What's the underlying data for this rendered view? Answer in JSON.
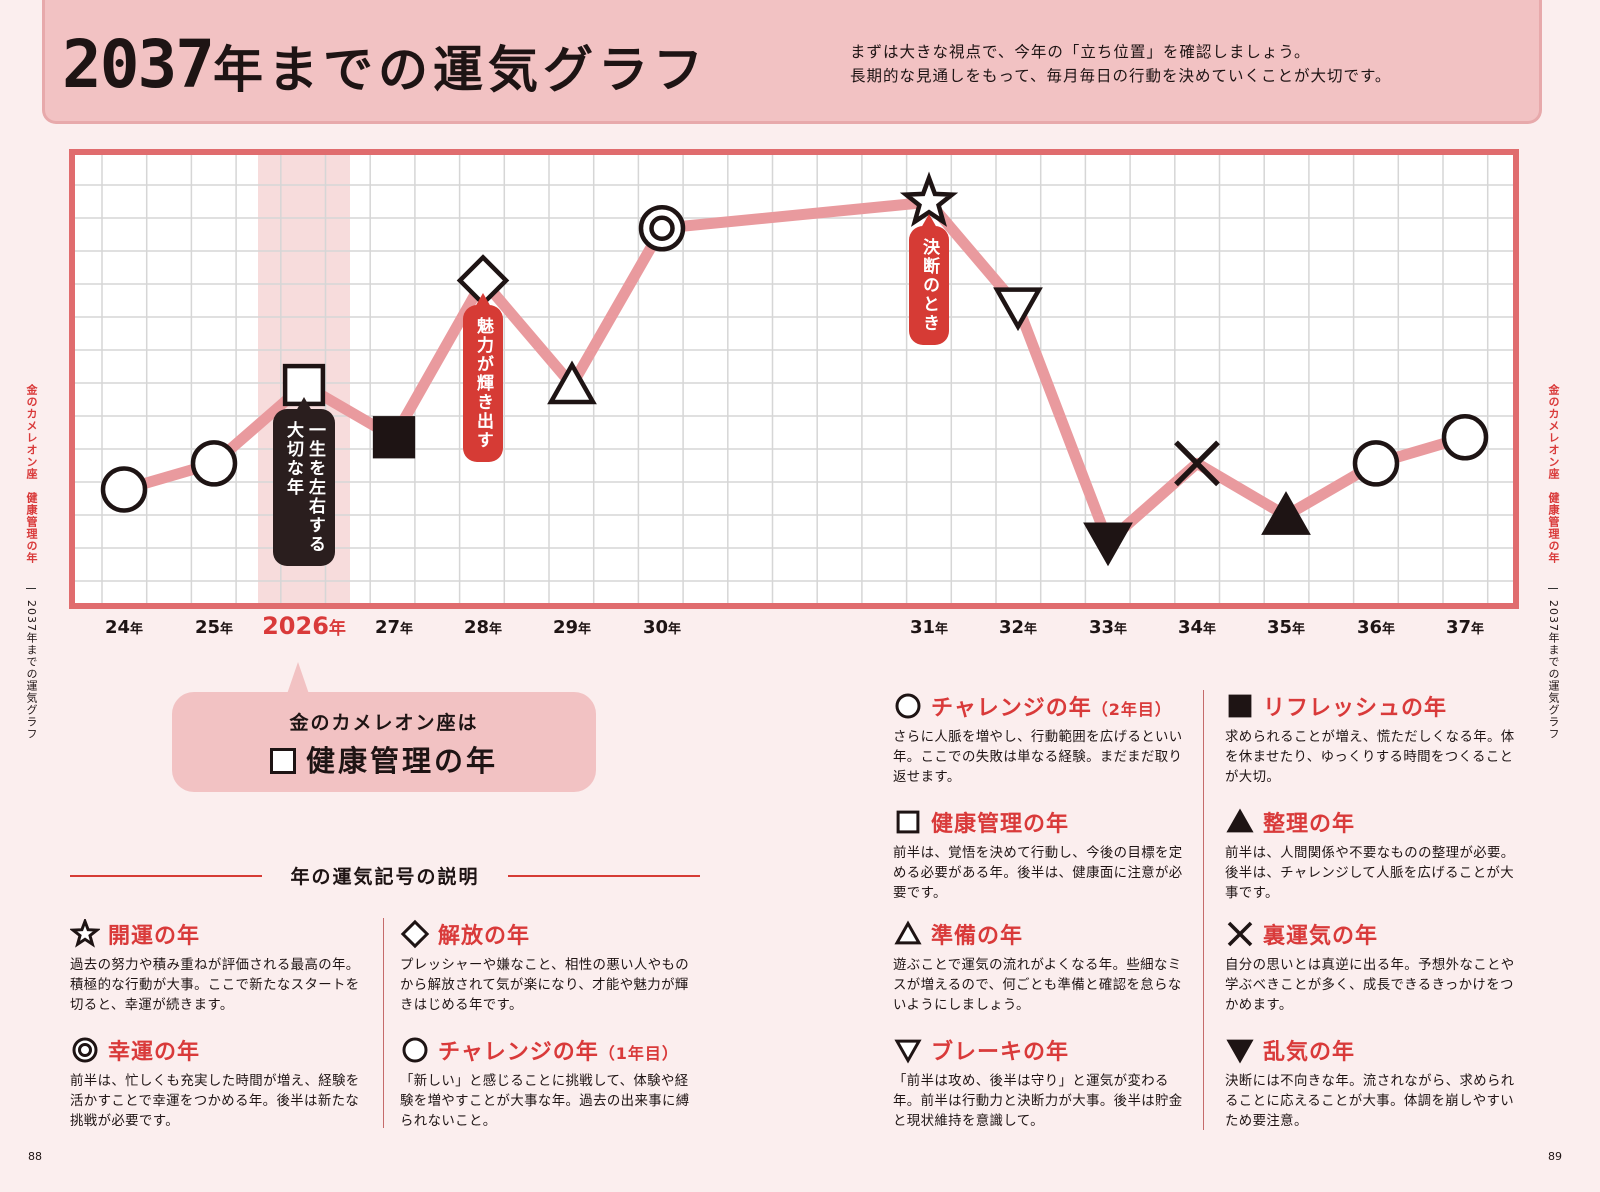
{
  "header": {
    "title_year": "2037",
    "title_rest": "年までの運気グラフ",
    "subtitle": [
      "まずは大きな視点で、今年の「立ち位置」を確認しましょう。",
      "長期的な見通しをもって、毎月毎日の行動を決めていくことが大切です。"
    ]
  },
  "chart_data": {
    "type": "line",
    "x": [
      "24",
      "25",
      "2026",
      "27",
      "28",
      "29",
      "30",
      "31",
      "32",
      "33",
      "34",
      "35",
      "36",
      "37"
    ],
    "x_suffix": "年",
    "highlight_year": "2026",
    "y": [
      4.0,
      5.0,
      8.0,
      6.0,
      12.0,
      8.0,
      14.0,
      15.0,
      11.0,
      2.0,
      5.0,
      3.0,
      5.0,
      6.0
    ],
    "ylim": [
      0,
      16
    ],
    "symbols": [
      "circle",
      "circle",
      "square",
      "square-filled",
      "diamond",
      "triangle",
      "double-circle",
      "star",
      "triangle-down",
      "triangle-down-filled",
      "cross",
      "triangle-filled",
      "circle",
      "circle"
    ],
    "grid": true,
    "annotations": [
      {
        "year": "2026",
        "text": "一生を左右する大切な年",
        "lines": [
          "一生を左右する",
          "大切な年"
        ],
        "style": "black"
      },
      {
        "year": "28",
        "text": "魅力が輝き出す",
        "lines": [
          "魅力が輝き出す"
        ],
        "style": "red"
      },
      {
        "year": "31",
        "text": "決断のとき",
        "lines": [
          "決断のとき"
        ],
        "style": "red"
      }
    ],
    "colors": {
      "line": "#e99a9e",
      "frame": "#e06c6e",
      "grid": "#d6d6d6",
      "highlight_band": "#f7dcdc",
      "accent": "#d93a3a"
    }
  },
  "callout": {
    "line1": "金のカメレオン座は",
    "line2": "健康管理の年",
    "symbol": "square"
  },
  "legend": {
    "heading": "年の運気記号の説明",
    "entries": [
      {
        "symbol": "star",
        "title": "開運の年",
        "note": "",
        "desc": "過去の努力や積み重ねが評価される最高の年。積極的な行動が大事。ここで新たなスタートを切ると、幸運が続きます。"
      },
      {
        "symbol": "double-circle",
        "title": "幸運の年",
        "note": "",
        "desc": "前半は、忙しくも充実した時間が増え、経験を活かすことで幸運をつかめる年。後半は新たな挑戦が必要です。"
      },
      {
        "symbol": "diamond",
        "title": "解放の年",
        "note": "",
        "desc": "プレッシャーや嫌なこと、相性の悪い人やものから解放されて気が楽になり、才能や魅力が輝きはじめる年です。"
      },
      {
        "symbol": "circle",
        "title": "チャレンジの年",
        "note": "（1年目）",
        "desc": "「新しい」と感じることに挑戦して、体験や経験を増やすことが大事な年。過去の出来事に縛られないこと。"
      },
      {
        "symbol": "circle",
        "title": "チャレンジの年",
        "note": "（2年目）",
        "desc": "さらに人脈を増やし、行動範囲を広げるといい年。ここでの失敗は単なる経験。まだまだ取り返せます。"
      },
      {
        "symbol": "square",
        "title": "健康管理の年",
        "note": "",
        "desc": "前半は、覚悟を決めて行動し、今後の目標を定める必要がある年。後半は、健康面に注意が必要です。"
      },
      {
        "symbol": "triangle",
        "title": "準備の年",
        "note": "",
        "desc": "遊ぶことで運気の流れがよくなる年。些細なミスが増えるので、何ごとも準備と確認を怠らないようにしましょう。"
      },
      {
        "symbol": "triangle-down",
        "title": "ブレーキの年",
        "note": "",
        "desc": "「前半は攻め、後半は守り」と運気が変わる年。前半は行動力と決断力が大事。後半は貯金と現状維持を意識して。"
      },
      {
        "symbol": "square-filled",
        "title": "リフレッシュの年",
        "note": "",
        "desc": "求められることが増え、慌ただしくなる年。体を休ませたり、ゆっくりする時間をつくることが大切。"
      },
      {
        "symbol": "triangle-filled",
        "title": "整理の年",
        "note": "",
        "desc": "前半は、人間関係や不要なものの整理が必要。後半は、チャレンジして人脈を広げることが大事です。"
      },
      {
        "symbol": "cross",
        "title": "裏運気の年",
        "note": "",
        "desc": "自分の思いとは真逆に出る年。予想外なことや学ぶべきことが多く、成長できるきっかけをつかめます。"
      },
      {
        "symbol": "triangle-down-filled",
        "title": "乱気の年",
        "note": "",
        "desc": "決断には不向きな年。流されながら、求められることに応えることが大事。体調を崩しやすいため要注意。"
      }
    ]
  },
  "side": {
    "red": "金のカメレオン座　健康管理の年",
    "black": "2037年までの運気グラフ"
  },
  "pages": {
    "left": "88",
    "right": "89"
  }
}
